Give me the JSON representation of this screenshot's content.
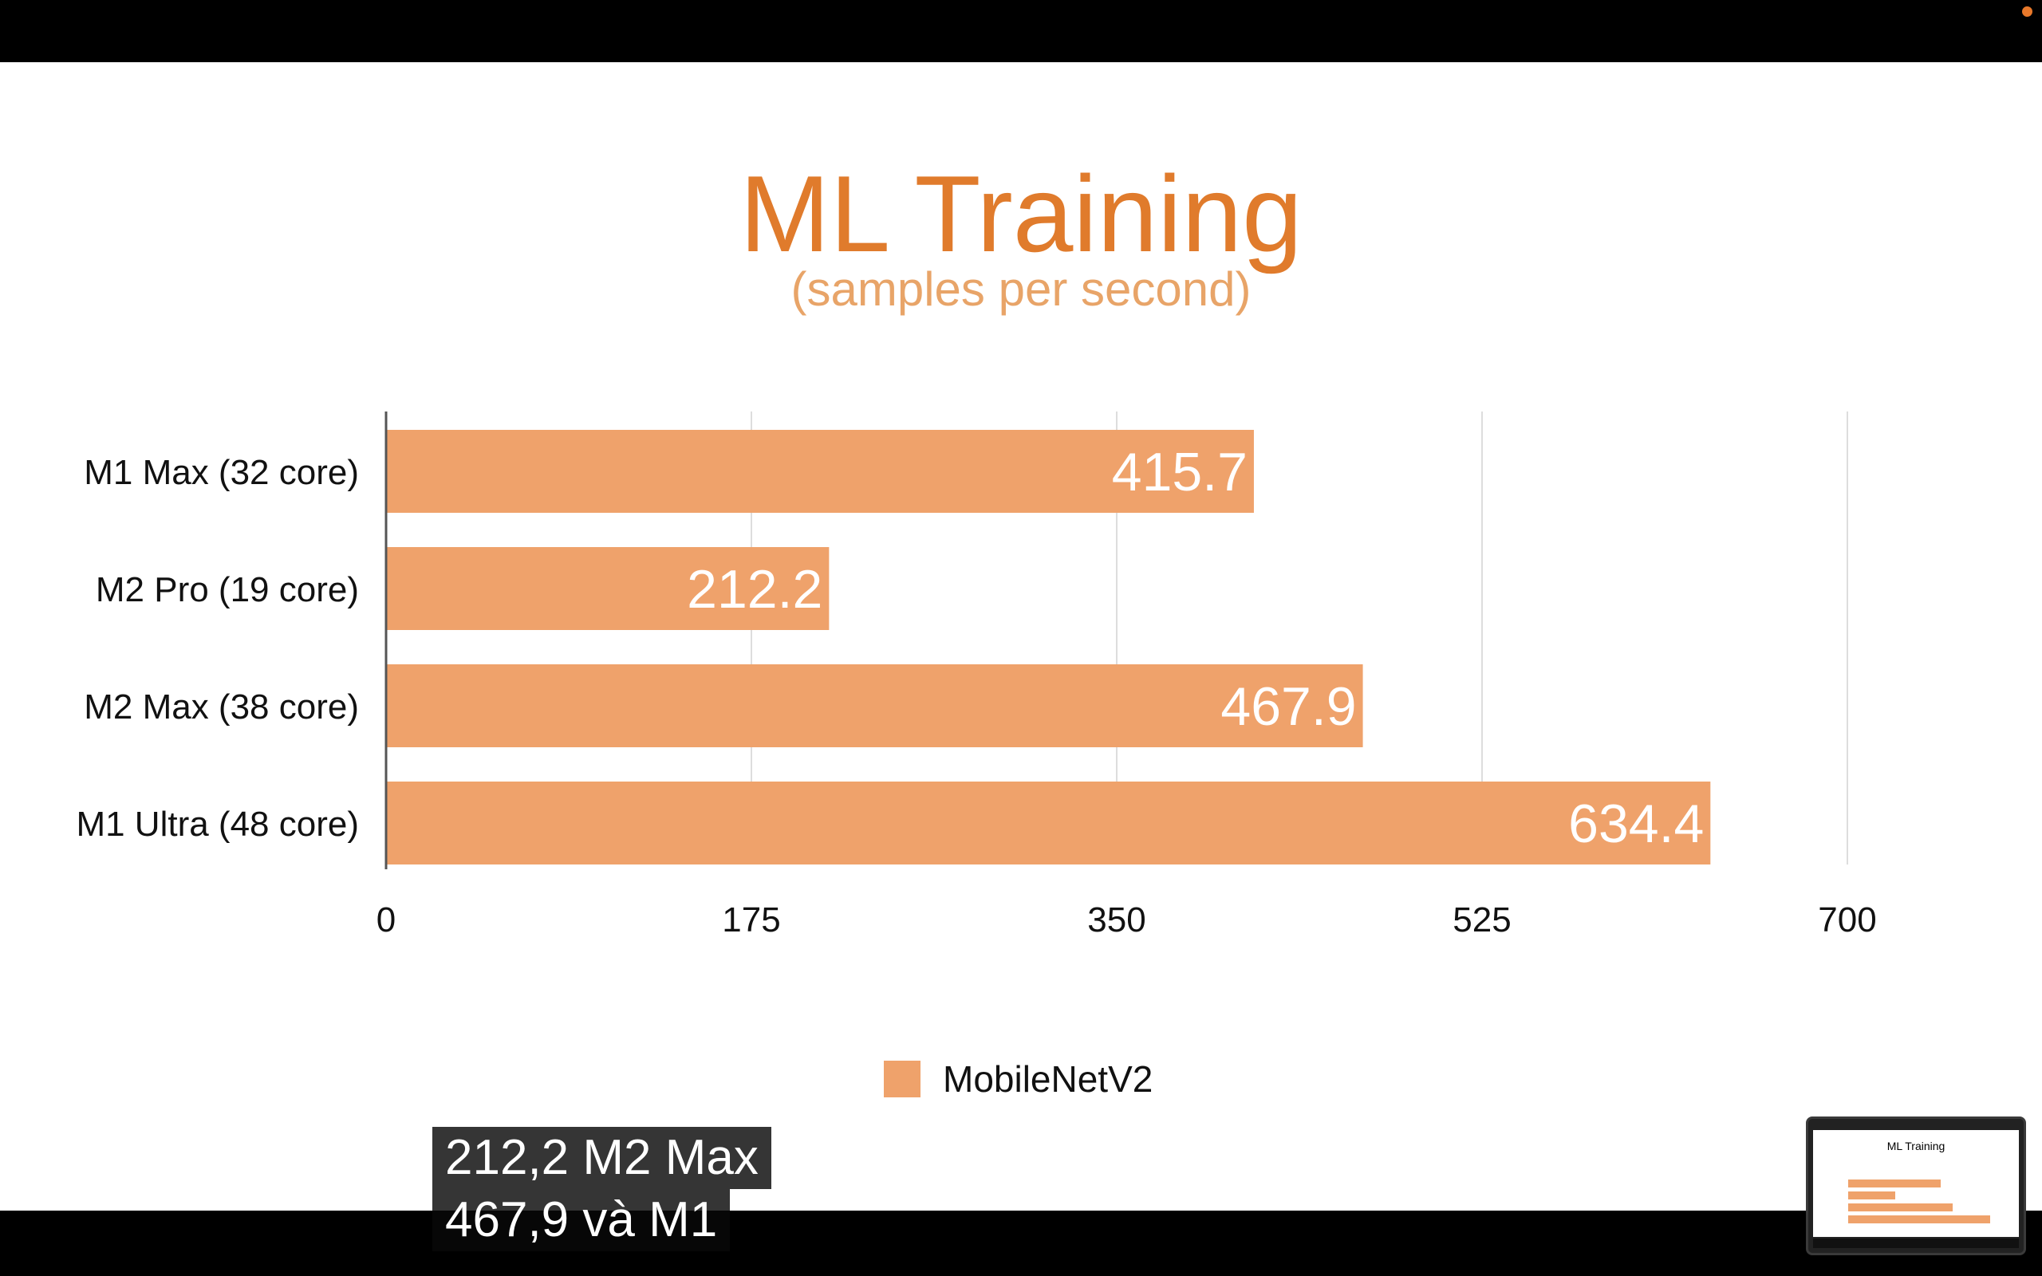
{
  "colors": {
    "accent": "#e07b2c",
    "subtitle": "#e8a468",
    "bar": "#efa26b",
    "bar_label": "#ffffff",
    "grid": "#dddddd",
    "record_dot": "#e8782a"
  },
  "chart_data": {
    "type": "bar",
    "orientation": "horizontal",
    "title": "ML Training",
    "subtitle": "(samples per second)",
    "categories": [
      "M1 Max (32 core)",
      "M2 Pro (19 core)",
      "M2 Max (38 core)",
      "M1 Ultra (48 core)"
    ],
    "series": [
      {
        "name": "MobileNetV2",
        "values": [
          415.7,
          212.2,
          467.9,
          634.4
        ],
        "labels": [
          "415.7",
          "212.2",
          "467.9",
          "634.4"
        ]
      }
    ],
    "xlim": [
      0,
      700
    ],
    "xticks": [
      0,
      175,
      350,
      525,
      700
    ],
    "xtick_labels": [
      "0",
      "175",
      "350",
      "525",
      "700"
    ],
    "grid": true,
    "legend_position": "bottom-center"
  },
  "caption": {
    "lines": [
      "212,2 M2 Max",
      "467,9 và M1"
    ]
  }
}
